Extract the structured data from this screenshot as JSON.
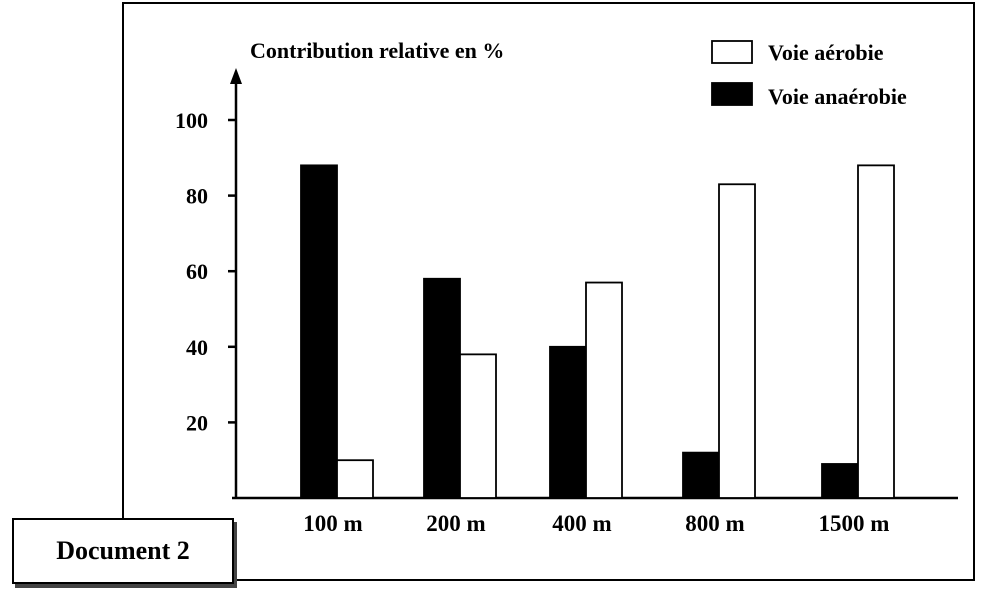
{
  "document_label": "Document 2",
  "colors": {
    "anaerobic": "#000000",
    "aerobic": "#ffffff",
    "outline": "#000000"
  },
  "chart_data": {
    "type": "bar",
    "ylabel": "Contribution relative en %",
    "xlabel": "",
    "ylim": [
      0,
      110
    ],
    "yticks": [
      20,
      40,
      60,
      80,
      100
    ],
    "categories": [
      "100 m",
      "200 m",
      "400 m",
      "800 m",
      "1500 m"
    ],
    "series": [
      {
        "name": "Voie anaérobie",
        "fill": "black",
        "values": [
          88,
          58,
          40,
          12,
          9
        ]
      },
      {
        "name": "Voie aérobie",
        "fill": "white",
        "values": [
          10,
          38,
          57,
          83,
          88
        ]
      }
    ],
    "legend": {
      "placement": "top-right",
      "order": [
        "Voie aérobie",
        "Voie anaérobie"
      ]
    },
    "grid": false
  }
}
